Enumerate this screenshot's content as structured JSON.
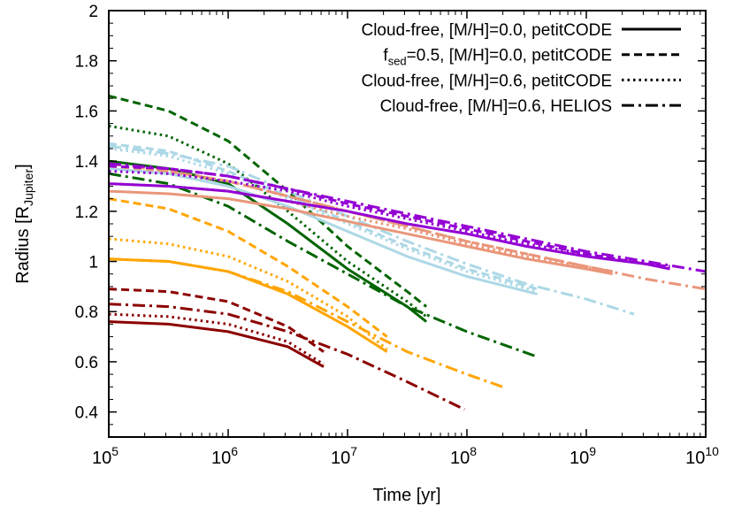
{
  "chart_data": {
    "type": "line",
    "xlabel": "Time [yr]",
    "ylabel": "Radius [R",
    "ylabel_sub": "Jupiter",
    "ylabel_end": "]",
    "xscale": "log",
    "xlim": [
      100000,
      10000000000
    ],
    "ylim": [
      0.3,
      2.0
    ],
    "grid": false,
    "legend_position": "top-right",
    "x_ticks": [
      {
        "base": "10",
        "exp": "5",
        "value": 5
      },
      {
        "base": "10",
        "exp": "6",
        "value": 6
      },
      {
        "base": "10",
        "exp": "7",
        "value": 7
      },
      {
        "base": "10",
        "exp": "8",
        "value": 8
      },
      {
        "base": "10",
        "exp": "9",
        "value": 9
      },
      {
        "base": "10",
        "exp": "10",
        "value": 10
      }
    ],
    "y_ticks": [
      "0.4",
      "0.6",
      "0.8",
      "1",
      "1.2",
      "1.4",
      "1.6",
      "1.8",
      "2"
    ],
    "legend": [
      {
        "label": "Cloud-free, [M/H]=0.0, petitCODE",
        "style": "solid"
      },
      {
        "label_pre": "f",
        "label_sub": "sed",
        "label": "=0.5, [M/H]=0.0, petitCODE",
        "style": "dashed"
      },
      {
        "label": "Cloud-free, [M/H]=0.6, petitCODE",
        "style": "dotted"
      },
      {
        "label": "Cloud-free, [M/H]=0.6, HELIOS",
        "style": "dashdot"
      }
    ],
    "series": [
      {
        "color": "#8b0000",
        "style": "solid",
        "log_t": [
          5,
          5.5,
          6,
          6.5,
          6.8
        ],
        "R": [
          0.76,
          0.75,
          0.72,
          0.66,
          0.58
        ]
      },
      {
        "color": "#8b0000",
        "style": "dashed",
        "log_t": [
          5,
          5.5,
          6,
          6.5,
          6.8
        ],
        "R": [
          0.89,
          0.88,
          0.84,
          0.74,
          0.64
        ]
      },
      {
        "color": "#8b0000",
        "style": "dotted",
        "log_t": [
          5,
          5.5,
          6,
          6.5,
          6.8
        ],
        "R": [
          0.79,
          0.78,
          0.75,
          0.68,
          0.59
        ]
      },
      {
        "color": "#8b0000",
        "style": "dashdot",
        "log_t": [
          5,
          5.5,
          6,
          6.5,
          7,
          7.5,
          7.98
        ],
        "R": [
          0.83,
          0.82,
          0.79,
          0.72,
          0.63,
          0.52,
          0.41
        ]
      },
      {
        "color": "#ffa500",
        "style": "solid",
        "log_t": [
          5,
          5.5,
          6,
          6.5,
          7,
          7.33
        ],
        "R": [
          1.01,
          1.0,
          0.96,
          0.87,
          0.74,
          0.64
        ]
      },
      {
        "color": "#ffa500",
        "style": "dashed",
        "log_t": [
          5,
          5.5,
          6,
          6.5,
          7,
          7.33
        ],
        "R": [
          1.25,
          1.21,
          1.12,
          0.98,
          0.82,
          0.7
        ]
      },
      {
        "color": "#ffa500",
        "style": "dotted",
        "log_t": [
          5,
          5.5,
          6,
          6.5,
          7,
          7.33
        ],
        "R": [
          1.09,
          1.07,
          1.02,
          0.92,
          0.78,
          0.65
        ]
      },
      {
        "color": "#ffa500",
        "style": "dashdot",
        "log_t": [
          5,
          5.5,
          6,
          6.5,
          7,
          7.5,
          8,
          8.3
        ],
        "R": [
          1.01,
          1.0,
          0.96,
          0.88,
          0.76,
          0.64,
          0.55,
          0.5
        ]
      },
      {
        "color": "#006400",
        "style": "solid",
        "log_t": [
          5,
          5.5,
          6,
          6.5,
          7,
          7.5,
          7.66
        ],
        "R": [
          1.4,
          1.37,
          1.31,
          1.15,
          0.97,
          0.82,
          0.76
        ]
      },
      {
        "color": "#006400",
        "style": "dashed",
        "log_t": [
          5,
          5.5,
          6,
          6.5,
          7,
          7.5,
          7.66
        ],
        "R": [
          1.66,
          1.6,
          1.48,
          1.28,
          1.06,
          0.88,
          0.82
        ]
      },
      {
        "color": "#006400",
        "style": "dotted",
        "log_t": [
          5,
          5.5,
          6,
          6.5,
          7,
          7.5,
          7.66
        ],
        "R": [
          1.54,
          1.5,
          1.39,
          1.2,
          1.0,
          0.84,
          0.78
        ]
      },
      {
        "color": "#006400",
        "style": "dashdot",
        "log_t": [
          5,
          5.5,
          6,
          6.5,
          7,
          7.5,
          8,
          8.59
        ],
        "R": [
          1.35,
          1.31,
          1.22,
          1.08,
          0.95,
          0.82,
          0.72,
          0.62
        ]
      },
      {
        "color": "#add8e6",
        "style": "solid",
        "log_t": [
          5,
          5.5,
          6,
          6.5,
          7,
          7.5,
          8,
          8.59
        ],
        "R": [
          1.37,
          1.35,
          1.3,
          1.22,
          1.12,
          1.02,
          0.94,
          0.87
        ]
      },
      {
        "color": "#add8e6",
        "style": "dashed",
        "log_t": [
          5,
          5.5,
          6,
          6.5,
          7,
          7.5,
          8,
          8.59
        ],
        "R": [
          1.47,
          1.44,
          1.36,
          1.26,
          1.16,
          1.06,
          0.97,
          0.89
        ]
      },
      {
        "color": "#add8e6",
        "style": "dotted",
        "log_t": [
          5,
          5.5,
          6,
          6.5,
          7,
          7.5,
          8,
          8.59
        ],
        "R": [
          1.45,
          1.42,
          1.35,
          1.25,
          1.15,
          1.05,
          0.96,
          0.88
        ]
      },
      {
        "color": "#add8e6",
        "style": "dashdot",
        "log_t": [
          5,
          5.5,
          6,
          6.5,
          7,
          7.5,
          8,
          8.5,
          9,
          9.4
        ],
        "R": [
          1.46,
          1.43,
          1.38,
          1.28,
          1.18,
          1.08,
          0.99,
          0.91,
          0.85,
          0.79
        ]
      },
      {
        "color": "#e9967a",
        "style": "solid",
        "log_t": [
          5,
          5.5,
          6,
          6.5,
          7,
          7.5,
          8,
          8.5,
          9,
          9.22
        ],
        "R": [
          1.28,
          1.27,
          1.25,
          1.21,
          1.16,
          1.11,
          1.06,
          1.01,
          0.97,
          0.95
        ]
      },
      {
        "color": "#e9967a",
        "style": "dashed",
        "log_t": [
          5,
          5.5,
          6,
          6.5,
          7,
          7.5,
          8,
          8.5,
          9,
          9.22
        ],
        "R": [
          1.38,
          1.36,
          1.32,
          1.26,
          1.2,
          1.14,
          1.08,
          1.03,
          0.98,
          0.96
        ]
      },
      {
        "color": "#e9967a",
        "style": "dotted",
        "log_t": [
          5,
          5.5,
          6,
          6.5,
          7,
          7.5,
          8,
          8.5,
          9,
          9.22
        ],
        "R": [
          1.31,
          1.3,
          1.28,
          1.24,
          1.18,
          1.13,
          1.07,
          1.02,
          0.98,
          0.96
        ]
      },
      {
        "color": "#e9967a",
        "style": "dashdot",
        "log_t": [
          5,
          5.5,
          6,
          6.5,
          7,
          7.5,
          8,
          8.5,
          9,
          9.5,
          10
        ],
        "R": [
          1.39,
          1.36,
          1.32,
          1.26,
          1.2,
          1.14,
          1.08,
          1.03,
          0.98,
          0.93,
          0.89
        ]
      },
      {
        "color": "#9400d3",
        "style": "solid",
        "log_t": [
          5,
          5.5,
          6,
          6.5,
          7,
          7.5,
          8,
          8.5,
          9,
          9.5,
          9.7
        ],
        "R": [
          1.31,
          1.3,
          1.28,
          1.24,
          1.2,
          1.15,
          1.11,
          1.06,
          1.02,
          0.99,
          0.97
        ]
      },
      {
        "color": "#9400d3",
        "style": "dashed",
        "log_t": [
          5,
          5.5,
          6,
          6.5,
          7,
          7.5,
          8,
          8.5,
          9,
          9.5,
          9.7
        ],
        "R": [
          1.38,
          1.37,
          1.34,
          1.29,
          1.23,
          1.18,
          1.13,
          1.08,
          1.03,
          0.99,
          0.98
        ]
      },
      {
        "color": "#9400d3",
        "style": "dotted",
        "log_t": [
          5,
          5.5,
          6,
          6.5,
          7,
          7.5,
          8,
          8.5,
          9,
          9.5,
          9.7
        ],
        "R": [
          1.36,
          1.35,
          1.32,
          1.28,
          1.22,
          1.17,
          1.12,
          1.07,
          1.03,
          0.99,
          0.98
        ]
      },
      {
        "color": "#9400d3",
        "style": "dashdot",
        "log_t": [
          5,
          5.5,
          6,
          6.5,
          7,
          7.5,
          8,
          8.5,
          9,
          9.5,
          10
        ],
        "R": [
          1.39,
          1.37,
          1.34,
          1.29,
          1.24,
          1.19,
          1.14,
          1.09,
          1.04,
          1.0,
          0.96
        ]
      }
    ]
  }
}
